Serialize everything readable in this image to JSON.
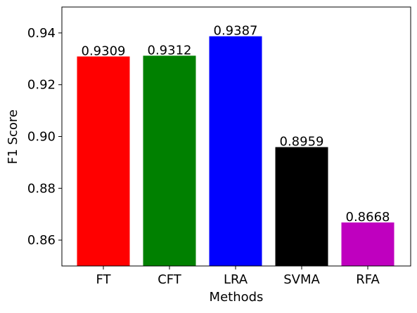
{
  "chart_data": {
    "type": "bar",
    "categories": [
      "FT",
      "CFT",
      "LRA",
      "SVMA",
      "RFA"
    ],
    "values": [
      0.9309,
      0.9312,
      0.9387,
      0.8959,
      0.8668
    ],
    "value_labels": [
      "0.9309",
      "0.9312",
      "0.9387",
      "0.8959",
      "0.8668"
    ],
    "colors": [
      "#ff0000",
      "#008000",
      "#0000ff",
      "#000000",
      "#bf00bf"
    ],
    "xlabel": "Methods",
    "ylabel": "F1 Score",
    "ylim": [
      0.85,
      0.95
    ],
    "yticks": [
      0.86,
      0.88,
      0.9,
      0.92,
      0.94
    ],
    "ytick_labels": [
      "0.86",
      "0.88",
      "0.90",
      "0.92",
      "0.94"
    ],
    "grid": false
  }
}
